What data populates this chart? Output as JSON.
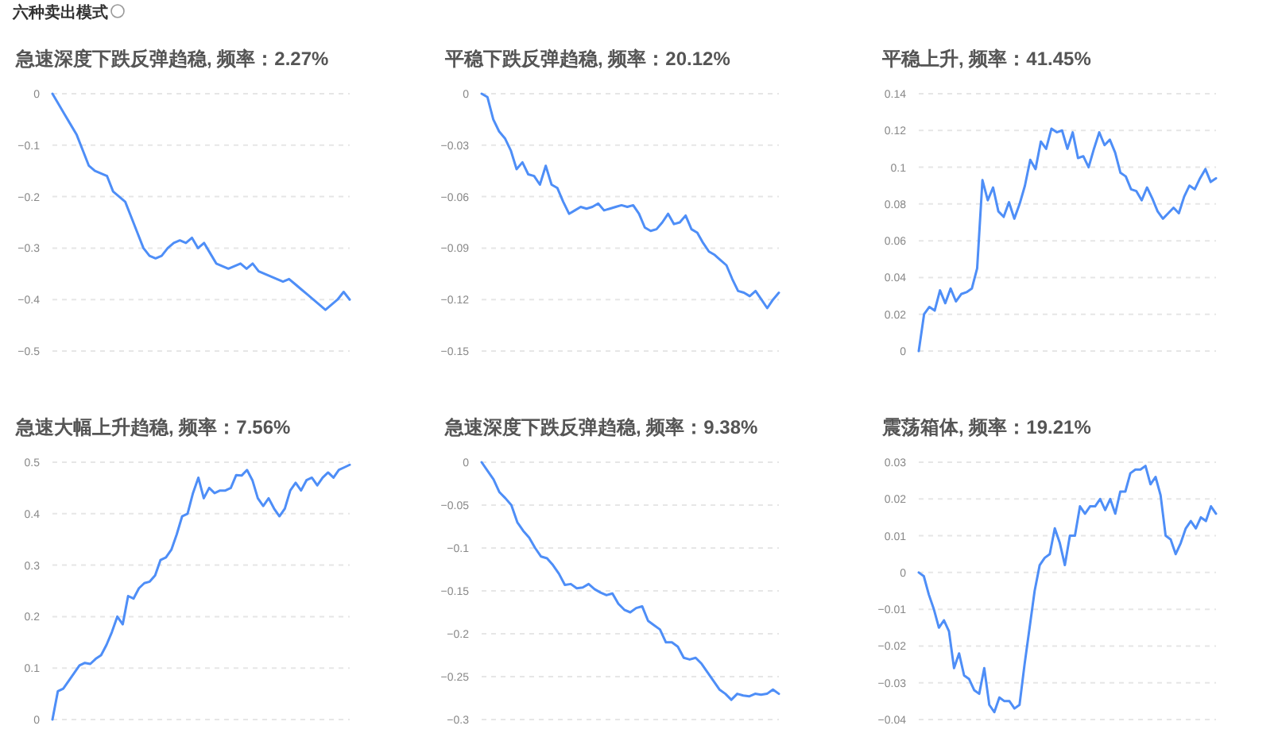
{
  "chart_data": [
    {
      "type": "line",
      "title": "急速深度下跌反弹趋稳, 频率：2.27%",
      "annotations": [
        "六种卖出模式"
      ],
      "grid": "y",
      "tick_labels": "y",
      "ylim": [
        -0.5,
        0
      ],
      "yticks": [
        0,
        -0.1,
        -0.2,
        -0.3,
        -0.4,
        -0.5
      ],
      "categories": [
        null,
        null,
        null,
        null,
        null,
        null,
        null,
        null,
        null,
        null,
        null,
        null,
        null,
        null,
        null,
        null,
        null,
        null,
        null,
        null,
        null,
        null,
        null,
        null,
        null,
        null,
        null,
        null,
        null,
        null,
        null,
        null,
        null,
        null,
        null,
        null,
        null,
        null,
        null,
        null,
        null,
        null,
        null,
        null,
        null,
        null,
        null,
        null,
        null,
        null
      ],
      "series": [
        {
          "color": "#4e8ef7",
          "values": [
            0,
            -0.02,
            -0.04,
            -0.06,
            -0.08,
            -0.11,
            -0.14,
            -0.15,
            -0.155,
            -0.16,
            -0.19,
            -0.2,
            -0.21,
            -0.24,
            -0.27,
            -0.3,
            -0.315,
            -0.32,
            -0.315,
            -0.3,
            -0.29,
            -0.285,
            -0.29,
            -0.28,
            -0.3,
            -0.29,
            -0.31,
            -0.33,
            -0.335,
            -0.34,
            -0.335,
            -0.33,
            -0.34,
            -0.33,
            -0.345,
            -0.35,
            -0.355,
            -0.36,
            -0.365,
            -0.36,
            -0.37,
            -0.38,
            -0.39,
            -0.4,
            -0.41,
            -0.42,
            -0.41,
            -0.4,
            -0.385,
            -0.4
          ]
        }
      ]
    },
    {
      "type": "line",
      "title": "平稳下跌反弹趋稳, 频率：20.12%",
      "grid": "y",
      "tick_labels": "y",
      "ylim": [
        -0.15,
        0
      ],
      "yticks": [
        0,
        -0.03,
        -0.06,
        -0.09,
        -0.12,
        -0.15
      ],
      "categories": [
        null,
        null,
        null,
        null,
        null,
        null,
        null,
        null,
        null,
        null,
        null,
        null,
        null,
        null,
        null,
        null,
        null,
        null,
        null,
        null,
        null,
        null,
        null,
        null,
        null,
        null,
        null,
        null,
        null,
        null,
        null,
        null,
        null,
        null,
        null,
        null,
        null,
        null,
        null,
        null,
        null,
        null,
        null,
        null,
        null,
        null,
        null,
        null,
        null,
        null,
        null,
        null
      ],
      "series": [
        {
          "color": "#4e8ef7",
          "values": [
            0,
            -0.002,
            -0.015,
            -0.022,
            -0.026,
            -0.033,
            -0.044,
            -0.04,
            -0.047,
            -0.048,
            -0.053,
            -0.042,
            -0.053,
            -0.055,
            -0.063,
            -0.07,
            -0.068,
            -0.066,
            -0.067,
            -0.066,
            -0.064,
            -0.068,
            -0.067,
            -0.066,
            -0.065,
            -0.066,
            -0.065,
            -0.07,
            -0.078,
            -0.08,
            -0.079,
            -0.075,
            -0.07,
            -0.076,
            -0.075,
            -0.071,
            -0.079,
            -0.081,
            -0.087,
            -0.092,
            -0.094,
            -0.097,
            -0.1,
            -0.108,
            -0.115,
            -0.116,
            -0.118,
            -0.115,
            -0.12,
            -0.125,
            -0.12,
            -0.116
          ]
        }
      ]
    },
    {
      "type": "line",
      "title": "平稳上升, 频率：41.45%",
      "grid": "y",
      "tick_labels": "y",
      "ylim": [
        0,
        0.14
      ],
      "yticks": [
        0,
        0.02,
        0.04,
        0.06,
        0.08,
        0.1,
        0.12,
        0.14
      ],
      "categories": [
        null,
        null,
        null,
        null,
        null,
        null,
        null,
        null,
        null,
        null,
        null,
        null,
        null,
        null,
        null,
        null,
        null,
        null,
        null,
        null,
        null,
        null,
        null,
        null,
        null,
        null,
        null,
        null,
        null,
        null,
        null,
        null,
        null,
        null,
        null,
        null,
        null,
        null,
        null,
        null,
        null,
        null,
        null,
        null,
        null,
        null,
        null,
        null,
        null,
        null,
        null,
        null,
        null,
        null,
        null,
        null,
        null
      ],
      "series": [
        {
          "color": "#4e8ef7",
          "values": [
            0,
            0.02,
            0.024,
            0.022,
            0.033,
            0.026,
            0.034,
            0.027,
            0.031,
            0.032,
            0.034,
            0.045,
            0.093,
            0.082,
            0.089,
            0.076,
            0.073,
            0.081,
            0.072,
            0.08,
            0.09,
            0.104,
            0.099,
            0.114,
            0.11,
            0.121,
            0.119,
            0.12,
            0.11,
            0.119,
            0.105,
            0.106,
            0.1,
            0.11,
            0.119,
            0.112,
            0.115,
            0.108,
            0.097,
            0.095,
            0.088,
            0.087,
            0.082,
            0.089,
            0.083,
            0.076,
            0.072,
            0.075,
            0.078,
            0.075,
            0.084,
            0.09,
            0.088,
            0.094,
            0.099,
            0.092,
            0.094
          ]
        }
      ]
    },
    {
      "type": "line",
      "title": "急速大幅上升趋稳, 频率：7.56%",
      "grid": "y",
      "tick_labels": "y",
      "ylim": [
        0,
        0.5
      ],
      "yticks": [
        0,
        0.1,
        0.2,
        0.3,
        0.4,
        0.5
      ],
      "categories": [
        null,
        null,
        null,
        null,
        null,
        null,
        null,
        null,
        null,
        null,
        null,
        null,
        null,
        null,
        null,
        null,
        null,
        null,
        null,
        null,
        null,
        null,
        null,
        null,
        null,
        null,
        null,
        null,
        null,
        null,
        null,
        null,
        null,
        null,
        null,
        null,
        null,
        null,
        null,
        null,
        null,
        null,
        null,
        null,
        null,
        null,
        null,
        null,
        null,
        null,
        null,
        null,
        null,
        null,
        null,
        null
      ],
      "series": [
        {
          "color": "#4e8ef7",
          "values": [
            0,
            0.055,
            0.06,
            0.075,
            0.09,
            0.105,
            0.11,
            0.108,
            0.118,
            0.125,
            0.145,
            0.17,
            0.2,
            0.185,
            0.24,
            0.235,
            0.255,
            0.265,
            0.268,
            0.28,
            0.31,
            0.315,
            0.33,
            0.36,
            0.395,
            0.4,
            0.44,
            0.47,
            0.43,
            0.45,
            0.44,
            0.445,
            0.445,
            0.45,
            0.475,
            0.474,
            0.485,
            0.465,
            0.43,
            0.415,
            0.43,
            0.41,
            0.395,
            0.41,
            0.445,
            0.46,
            0.445,
            0.465,
            0.47,
            0.455,
            0.47,
            0.48,
            0.47,
            0.485,
            0.49,
            0.495
          ]
        }
      ]
    },
    {
      "type": "line",
      "title": "急速深度下跌反弹趋稳, 频率：9.38%",
      "grid": "y",
      "tick_labels": "y",
      "ylim": [
        -0.3,
        0
      ],
      "yticks": [
        0,
        -0.05,
        -0.1,
        -0.15,
        -0.2,
        -0.25,
        -0.3
      ],
      "categories": [
        null,
        null,
        null,
        null,
        null,
        null,
        null,
        null,
        null,
        null,
        null,
        null,
        null,
        null,
        null,
        null,
        null,
        null,
        null,
        null,
        null,
        null,
        null,
        null,
        null,
        null,
        null,
        null,
        null,
        null,
        null,
        null,
        null,
        null,
        null,
        null,
        null,
        null,
        null,
        null,
        null,
        null,
        null,
        null,
        null,
        null,
        null,
        null,
        null,
        null,
        null
      ],
      "series": [
        {
          "color": "#4e8ef7",
          "values": [
            0,
            -0.01,
            -0.02,
            -0.035,
            -0.042,
            -0.05,
            -0.07,
            -0.08,
            -0.088,
            -0.1,
            -0.11,
            -0.112,
            -0.12,
            -0.13,
            -0.143,
            -0.142,
            -0.147,
            -0.146,
            -0.142,
            -0.148,
            -0.152,
            -0.155,
            -0.153,
            -0.165,
            -0.172,
            -0.175,
            -0.17,
            -0.168,
            -0.185,
            -0.19,
            -0.195,
            -0.21,
            -0.21,
            -0.215,
            -0.228,
            -0.23,
            -0.228,
            -0.235,
            -0.245,
            -0.255,
            -0.265,
            -0.27,
            -0.277,
            -0.27,
            -0.272,
            -0.273,
            -0.27,
            -0.271,
            -0.27,
            -0.265,
            -0.27
          ]
        }
      ]
    },
    {
      "type": "line",
      "title": "震荡箱体, 频率：19.21%",
      "grid": "y",
      "tick_labels": "y",
      "ylim": [
        -0.04,
        0.03
      ],
      "yticks": [
        0.03,
        0.02,
        0.01,
        0,
        -0.01,
        -0.02,
        -0.03,
        -0.04
      ],
      "categories": [
        null,
        null,
        null,
        null,
        null,
        null,
        null,
        null,
        null,
        null,
        null,
        null,
        null,
        null,
        null,
        null,
        null,
        null,
        null,
        null,
        null,
        null,
        null,
        null,
        null,
        null,
        null,
        null,
        null,
        null,
        null,
        null,
        null,
        null,
        null,
        null,
        null,
        null,
        null,
        null,
        null,
        null,
        null,
        null,
        null,
        null,
        null,
        null,
        null,
        null,
        null,
        null,
        null,
        null,
        null,
        null,
        null,
        null,
        null,
        null
      ],
      "series": [
        {
          "color": "#4e8ef7",
          "values": [
            0,
            -0.001,
            -0.006,
            -0.01,
            -0.015,
            -0.013,
            -0.016,
            -0.026,
            -0.022,
            -0.028,
            -0.029,
            -0.032,
            -0.033,
            -0.026,
            -0.036,
            -0.038,
            -0.034,
            -0.035,
            -0.035,
            -0.037,
            -0.036,
            -0.025,
            -0.015,
            -0.005,
            0.002,
            0.004,
            0.005,
            0.012,
            0.008,
            0.002,
            0.01,
            0.01,
            0.018,
            0.016,
            0.018,
            0.018,
            0.02,
            0.017,
            0.02,
            0.016,
            0.022,
            0.022,
            0.027,
            0.028,
            0.028,
            0.029,
            0.024,
            0.026,
            0.021,
            0.01,
            0.009,
            0.005,
            0.008,
            0.012,
            0.014,
            0.012,
            0.015,
            0.014,
            0.018,
            0.016
          ]
        }
      ]
    }
  ]
}
